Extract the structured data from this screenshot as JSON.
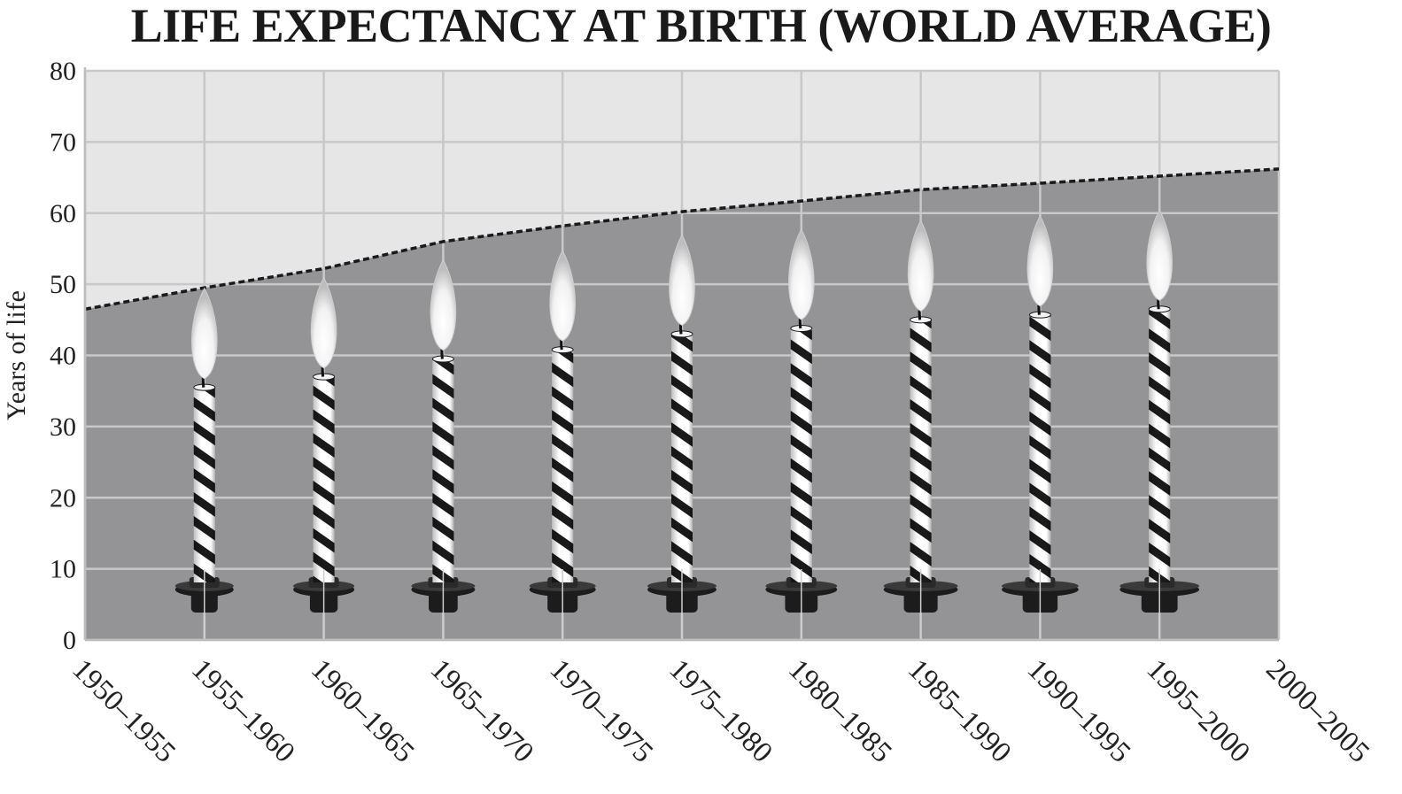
{
  "chart_data": {
    "type": "line",
    "title": "LIFE EXPECTANCY AT BIRTH (WORLD AVERAGE)",
    "ylabel": "Years of life",
    "xlabel": "",
    "ylim": [
      0,
      80
    ],
    "yticks": [
      "0",
      "10",
      "20",
      "30",
      "40",
      "50",
      "60",
      "70",
      "80"
    ],
    "categories": [
      "1950–1955",
      "1955–1960",
      "1960–1965",
      "1965–1970",
      "1970–1975",
      "1975–1980",
      "1980–1985",
      "1985–1990",
      "1990–1995",
      "1995–2000",
      "2000–2005"
    ],
    "values": [
      46.5,
      49.5,
      52.2,
      56.0,
      58.2,
      60.2,
      61.7,
      63.3,
      64.2,
      65.2,
      66.2
    ],
    "candles": {
      "note": "each candle marks a period; candle top plus flame tip follows the line",
      "categories": [
        "1955–1960",
        "1960–1965",
        "1965–1970",
        "1970–1975",
        "1975–1980",
        "1980–1985",
        "1985–1990",
        "1990–1995",
        "1995–2000"
      ],
      "heights": [
        35.5,
        37.0,
        39.5,
        40.8,
        43.0,
        43.8,
        45.0,
        45.7,
        46.5
      ]
    },
    "grid": true,
    "legend": "none",
    "colors": {
      "area_fill": "#949497",
      "plot_background": "#e6e6e7",
      "gridline": "#c8c8c8",
      "line": "#1a1a1a",
      "candle_stripe_dark": "#1a1a1a",
      "candle_stripe_light": "#ffffff",
      "holder": "#1c1c1c",
      "flame": "#f4f4f4"
    }
  }
}
